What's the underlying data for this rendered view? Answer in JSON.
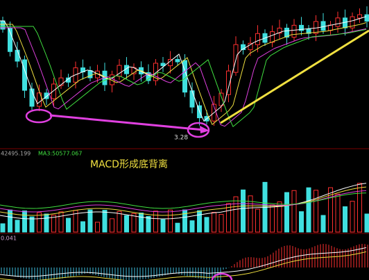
{
  "price_panel": {
    "low_label": "3.28"
  },
  "volume_panel": {
    "ma2": "42495.199",
    "ma3": "MA3:50577.067",
    "annotation": "MACD形成底背离"
  },
  "macd_panel": {
    "value": "0.041"
  }
}
